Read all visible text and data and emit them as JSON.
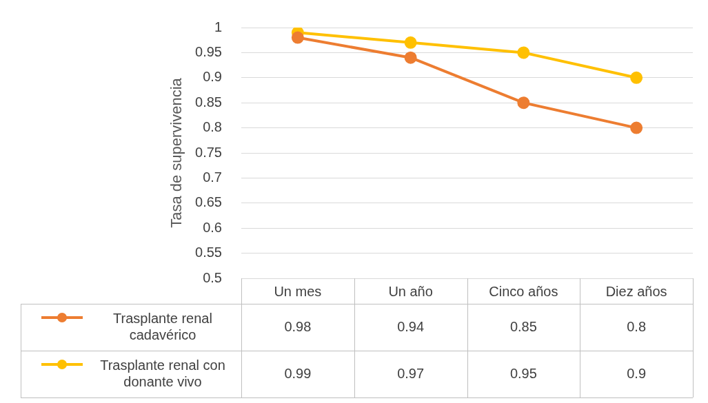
{
  "chart_data": {
    "type": "line",
    "ylabel": "Tasa de supervivencia",
    "categories": [
      "Un mes",
      "Un año",
      "Cinco años",
      "Diez años"
    ],
    "series": [
      {
        "name": "Trasplante renal cadavérico",
        "color": "#ed7d31",
        "values": [
          0.98,
          0.94,
          0.85,
          0.8
        ]
      },
      {
        "name": "Trasplante renal con donante vivo",
        "color": "#ffc000",
        "values": [
          0.99,
          0.97,
          0.95,
          0.9
        ]
      }
    ],
    "ylim": [
      0.5,
      1
    ],
    "yticks": [
      0.5,
      0.55,
      0.6,
      0.65,
      0.7,
      0.75,
      0.8,
      0.85,
      0.9,
      0.95,
      1
    ],
    "grid": "y",
    "legend": "bottom",
    "marker": "circle",
    "line_style": "solid",
    "data_labels": true
  }
}
